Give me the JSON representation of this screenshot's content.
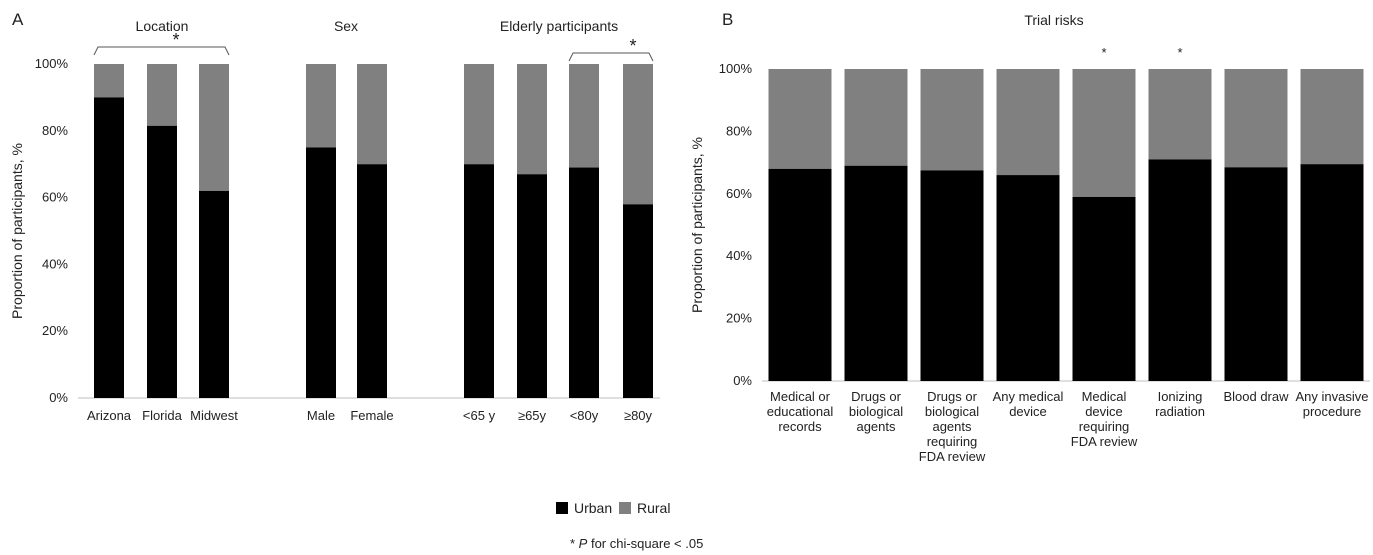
{
  "chart_data": [
    {
      "type": "bar",
      "stacked": true,
      "panel": "A",
      "ylabel": "Proportion of participants, %",
      "ylim": [
        0,
        100
      ],
      "yticks": [
        "0%",
        "20%",
        "40%",
        "60%",
        "80%",
        "100%"
      ],
      "groups": [
        {
          "label": "Location",
          "categories": [
            "Arizona",
            "Florida",
            "Midwest"
          ],
          "urban": [
            90,
            81.5,
            62
          ]
        },
        {
          "label": "Sex",
          "categories": [
            "Male",
            "Female"
          ],
          "urban": [
            75,
            70
          ]
        },
        {
          "label": "Elderly participants",
          "categories": [
            "<65 y",
            "≥65y",
            "<80y",
            "≥80y"
          ],
          "urban": [
            70,
            67,
            69,
            58
          ]
        }
      ],
      "significance": [
        {
          "group": 0,
          "from": 0,
          "to": 2,
          "mark": "*"
        },
        {
          "group": 2,
          "from": 2,
          "to": 3,
          "mark": "*"
        }
      ]
    },
    {
      "type": "bar",
      "stacked": true,
      "panel": "B",
      "title": "Trial risks",
      "ylabel": "Proportion of participants, %",
      "ylim": [
        0,
        100
      ],
      "yticks": [
        "0%",
        "20%",
        "40%",
        "60%",
        "80%",
        "100%"
      ],
      "categories": [
        [
          "Medical or",
          "educational",
          "records"
        ],
        [
          "Drugs or",
          "biological",
          "agents"
        ],
        [
          "Drugs or",
          "biological",
          "agents",
          "requiring",
          "FDA review"
        ],
        [
          "Any medical",
          "device"
        ],
        [
          "Medical",
          "device",
          "requiring",
          "FDA review"
        ],
        [
          "Ionizing",
          "radiation"
        ],
        [
          "Blood draw"
        ],
        [
          "Any invasive",
          "procedure"
        ]
      ],
      "urban": [
        68,
        69,
        67.5,
        66,
        59,
        71,
        68.5,
        69.5
      ],
      "stars": [
        "",
        "",
        "",
        "",
        "*",
        "*",
        "",
        ""
      ]
    }
  ],
  "legend": [
    {
      "label": "Urban",
      "color": "#000000"
    },
    {
      "label": "Rural",
      "color": "#808080"
    }
  ],
  "footnote": {
    "mark": "*",
    "italic": "P",
    "text": " for chi-square < .05"
  }
}
